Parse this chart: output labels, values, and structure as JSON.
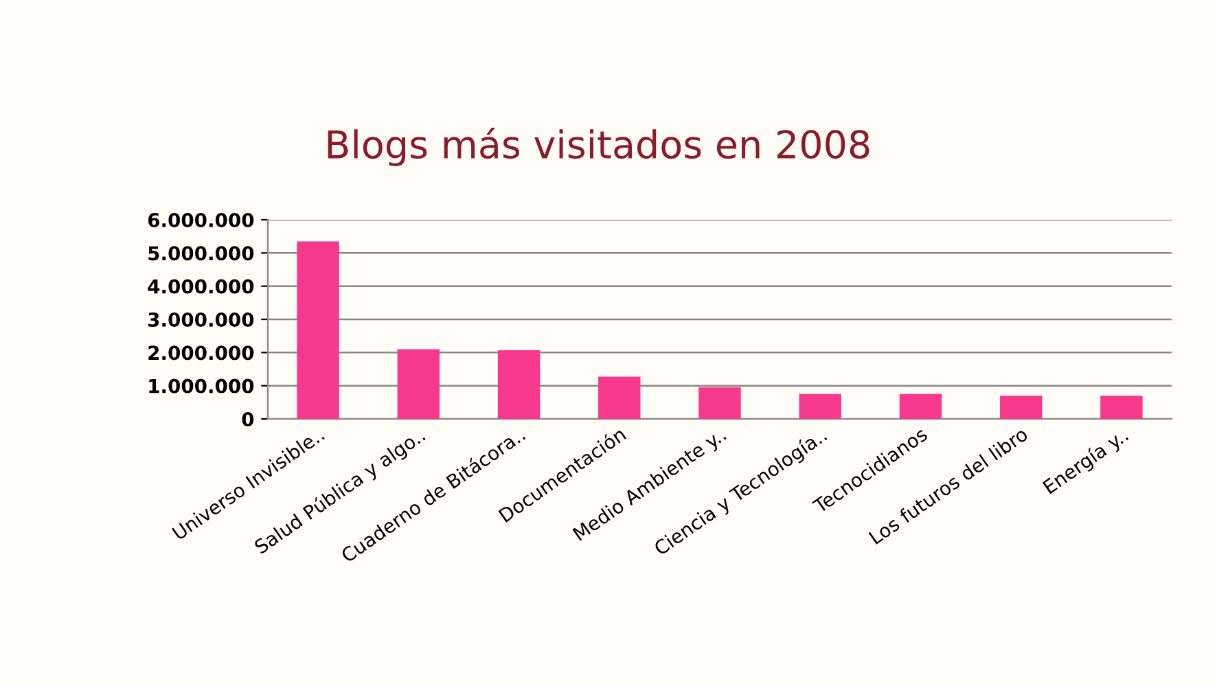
{
  "chart_data": {
    "type": "bar",
    "title": "Blogs más visitados en 2008",
    "categories": [
      "Universo Invisible..",
      "Salud Pública y algo..",
      "Cuaderno de Bitácora..",
      "Documentación",
      "Medio Ambiente y..",
      "Ciencia y Tecnología..",
      "Tecnocidianos",
      "Los futuros del libro",
      "Energía y.."
    ],
    "values": [
      5350000,
      2100000,
      2070000,
      1270000,
      950000,
      750000,
      750000,
      700000,
      700000
    ],
    "color": "#f7398d",
    "ylim": [
      0,
      6000000
    ],
    "yticks": [
      {
        "value": 0,
        "label": "0"
      },
      {
        "value": 1000000,
        "label": "1.000.000"
      },
      {
        "value": 2000000,
        "label": "2.000.000"
      },
      {
        "value": 3000000,
        "label": "3.000.000"
      },
      {
        "value": 4000000,
        "label": "4.000.000"
      },
      {
        "value": 5000000,
        "label": "5.000.000"
      },
      {
        "value": 6000000,
        "label": "6.000.000"
      }
    ],
    "grid": "y"
  }
}
